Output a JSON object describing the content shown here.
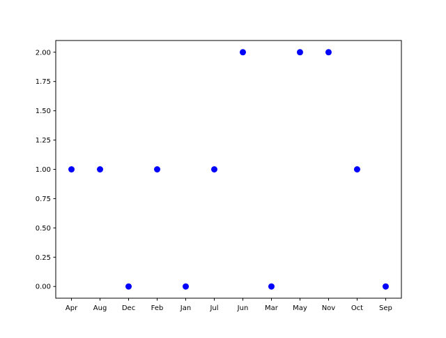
{
  "chart_data": {
    "type": "scatter",
    "title": "",
    "xlabel": "",
    "ylabel": "",
    "categories": [
      "Apr",
      "Aug",
      "Dec",
      "Feb",
      "Jan",
      "Jul",
      "Jun",
      "Mar",
      "May",
      "Nov",
      "Oct",
      "Sep"
    ],
    "values": [
      1,
      1,
      0,
      1,
      0,
      1,
      2,
      0,
      2,
      2,
      1,
      0
    ],
    "yticks": [
      "0.00",
      "0.25",
      "0.50",
      "0.75",
      "1.00",
      "1.25",
      "1.50",
      "1.75",
      "2.00"
    ],
    "ylim": [
      -0.1,
      2.1
    ],
    "grid": false,
    "marker_color": "#0000ff"
  }
}
